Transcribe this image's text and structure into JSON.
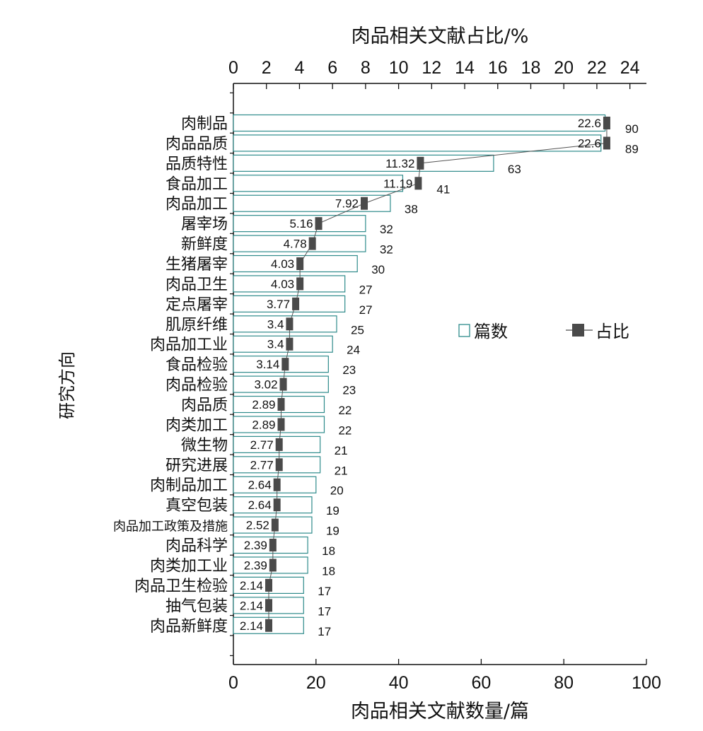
{
  "chart_data": {
    "type": "bar",
    "orientation": "horizontal",
    "title": "",
    "xlabel_bottom": "肉品相关文献数量/篇",
    "xlabel_top": "肉品相关文献占比/%",
    "ylabel": "研究方向",
    "xlim_bottom": [
      0,
      100
    ],
    "xlim_top": [
      0,
      25
    ],
    "ticks_bottom": [
      "0",
      "20",
      "40",
      "60",
      "80",
      "100"
    ],
    "ticks_top": [
      "0",
      "2",
      "4",
      "6",
      "8",
      "10",
      "12",
      "14",
      "16",
      "18",
      "20",
      "22",
      "24"
    ],
    "legend_position": "right",
    "categories": [
      "肉制品",
      "肉品品质",
      "品质特性",
      "食品加工",
      "肉品加工",
      "屠宰场",
      "新鲜度",
      "生猪屠宰",
      "肉品卫生",
      "定点屠宰",
      "肌原纤维",
      "肉品加工业",
      "食品检验",
      "肉品检验",
      "肉品质",
      "肉类加工",
      "微生物",
      "研究进展",
      "肉制品加工",
      "真空包装",
      "肉品加工政策及措施",
      "肉品科学",
      "肉类加工业",
      "肉品卫生检验",
      "抽气包装",
      "肉品新鲜度"
    ],
    "series": [
      {
        "name": "篇数",
        "type": "bar",
        "axis": "bottom",
        "color": "#2e8b8b",
        "values": [
          90,
          89,
          63,
          41,
          38,
          32,
          32,
          30,
          27,
          27,
          25,
          24,
          23,
          23,
          22,
          22,
          21,
          21,
          20,
          19,
          19,
          18,
          18,
          17,
          17,
          17
        ],
        "labels": [
          "90",
          "89",
          "63",
          "41",
          "38",
          "32",
          "32",
          "30",
          "27",
          "27",
          "25",
          "24",
          "23",
          "23",
          "22",
          "22",
          "21",
          "21",
          "20",
          "19",
          "19",
          "18",
          "18",
          "17",
          "17",
          "17"
        ]
      },
      {
        "name": "占比",
        "type": "line",
        "axis": "top",
        "color": "#4a4a4a",
        "values": [
          22.6,
          22.6,
          11.32,
          11.19,
          7.92,
          5.16,
          4.78,
          4.03,
          4.03,
          3.77,
          3.4,
          3.4,
          3.14,
          3.02,
          2.89,
          2.89,
          2.77,
          2.77,
          2.64,
          2.64,
          2.52,
          2.39,
          2.39,
          2.14,
          2.14,
          2.14
        ],
        "labels": [
          "22.6",
          "22.6",
          "11.32",
          "11.19",
          "7.92",
          "5.16",
          "4.78",
          "4.03",
          "4.03",
          "3.77",
          "3.4",
          "3.4",
          "3.14",
          "3.02",
          "2.89",
          "2.89",
          "2.77",
          "2.77",
          "2.64",
          "2.64",
          "2.52",
          "2.39",
          "2.39",
          "2.14",
          "2.14",
          "2.14"
        ]
      }
    ]
  }
}
